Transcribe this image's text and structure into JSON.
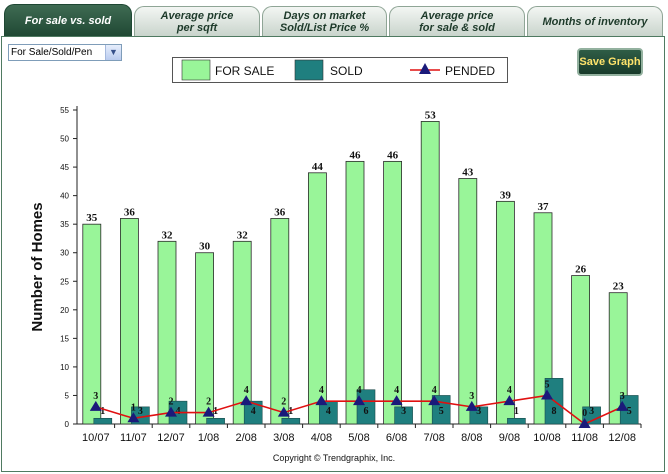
{
  "tabs": [
    {
      "line1": "For sale vs. sold",
      "line2": ""
    },
    {
      "line1": "Average price",
      "line2": "per sqft"
    },
    {
      "line1": "Days on market",
      "line2": "Sold/List Price %"
    },
    {
      "line1": "Average price",
      "line2": "for sale & sold"
    },
    {
      "line1": "Months of inventory",
      "line2": ""
    }
  ],
  "filter": {
    "selected": "For Sale/Sold/Pen",
    "arrow_icon": "chevron-down-icon"
  },
  "save_button": "Save Graph",
  "copyright": "Copyright © Trendgraphix, Inc.",
  "colors": {
    "for_sale": "#99f599",
    "sold": "#1f7f7f",
    "pended_line": "#e01010",
    "pended_marker": "#1a1a7a",
    "tab_active": "#2e5a44"
  },
  "chart_data": {
    "type": "bar",
    "ylabel": "Number of Homes",
    "xlabel": "",
    "ylim": [
      0,
      55
    ],
    "ytick_step": 5,
    "grid": false,
    "legend_position": "top",
    "categories": [
      "10/07",
      "11/07",
      "12/07",
      "1/08",
      "2/08",
      "3/08",
      "4/08",
      "5/08",
      "6/08",
      "7/08",
      "8/08",
      "9/08",
      "10/08",
      "11/08",
      "12/08"
    ],
    "series": [
      {
        "name": "FOR SALE",
        "kind": "bar",
        "values": [
          35,
          36,
          32,
          30,
          32,
          36,
          44,
          46,
          46,
          53,
          43,
          39,
          37,
          26,
          23
        ]
      },
      {
        "name": "SOLD",
        "kind": "bar",
        "values": [
          1,
          3,
          4,
          1,
          4,
          1,
          4,
          6,
          3,
          5,
          3,
          1,
          8,
          3,
          5
        ]
      },
      {
        "name": "PENDED",
        "kind": "line",
        "values": [
          3,
          1,
          2,
          2,
          4,
          2,
          4,
          4,
          4,
          4,
          3,
          4,
          5,
          0,
          3
        ]
      }
    ]
  }
}
